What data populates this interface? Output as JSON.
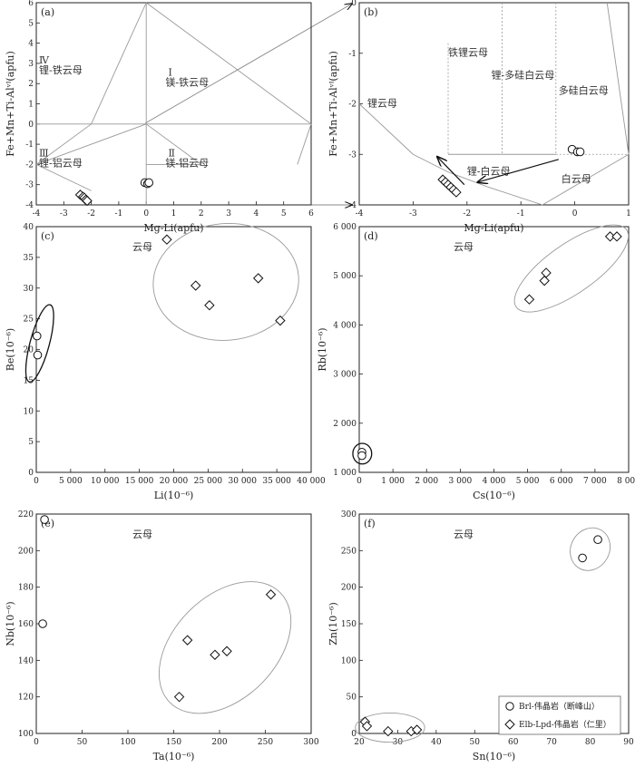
{
  "legend": {
    "items": [
      {
        "marker": "circle",
        "label": "Brl-伟晶岩（断峰山）"
      },
      {
        "marker": "diamond",
        "label": "Elb-Lpd-伟晶岩（仁里）"
      }
    ]
  },
  "chart_data": [
    {
      "id": "a",
      "panel_label": "(a)",
      "type": "scatter",
      "xlabel": "Mg-Li(apfu)",
      "ylabel": "Fe+Mn+Ti-Alᵛᴵ(apfu)",
      "xlim": [
        -4,
        6
      ],
      "ylim": [
        -4,
        6
      ],
      "xticks": [
        -4,
        -3,
        -2,
        -1,
        0,
        1,
        2,
        3,
        4,
        5,
        6
      ],
      "xtick_labels": [
        "-4",
        "-3",
        "-2",
        "-1",
        "0",
        "1",
        "2",
        "3",
        "4",
        "5",
        "6"
      ],
      "yticks": [
        -4,
        -3,
        -2,
        -1,
        0,
        1,
        2,
        3,
        4,
        5,
        6
      ],
      "ytick_labels": [
        "-4",
        "-3",
        "-2",
        "-1",
        "0",
        "1",
        "2",
        "3",
        "4",
        "5",
        "6"
      ],
      "regions": [
        {
          "label": "Ⅳ",
          "x": -3.9,
          "y": 3.0
        },
        {
          "label": "锂-铁云母",
          "x": -3.9,
          "y": 2.5
        },
        {
          "label": "Ⅰ",
          "x": 0.8,
          "y": 2.4
        },
        {
          "label": "镁-铁云母",
          "x": 0.7,
          "y": 1.9
        },
        {
          "label": "Ⅲ",
          "x": -3.9,
          "y": -1.6
        },
        {
          "label": "锂-铝云母",
          "x": -3.9,
          "y": -2.1
        },
        {
          "label": "Ⅱ",
          "x": 0.8,
          "y": -1.6
        },
        {
          "label": "镁-铝云母",
          "x": 0.7,
          "y": -2.1
        }
      ],
      "boundaries": [
        [
          [
            0,
            6
          ],
          [
            0,
            -4
          ]
        ],
        [
          [
            -4,
            0
          ],
          [
            6,
            0
          ]
        ],
        [
          [
            0,
            6
          ],
          [
            -2,
            0
          ]
        ],
        [
          [
            -2,
            0
          ],
          [
            -4,
            -2
          ]
        ],
        [
          [
            0,
            6
          ],
          [
            6,
            0
          ]
        ],
        [
          [
            6,
            0
          ],
          [
            5.5,
            -2
          ]
        ],
        [
          [
            0,
            0
          ],
          [
            -4,
            -2
          ]
        ],
        [
          [
            -4,
            -2
          ],
          [
            -2,
            -3.3
          ]
        ],
        [
          [
            0,
            -2
          ],
          [
            2,
            -2
          ]
        ],
        [
          [
            0,
            0
          ],
          [
            2,
            -2
          ]
        ]
      ],
      "series": [
        {
          "marker": "circle",
          "x": [
            -0.05,
            0.05,
            0.1
          ],
          "y": [
            -2.9,
            -2.95,
            -2.9
          ]
        },
        {
          "marker": "diamond",
          "x": [
            -2.4,
            -2.3,
            -2.25,
            -2.2,
            -2.15
          ],
          "y": [
            -3.5,
            -3.6,
            -3.65,
            -3.75,
            -3.8
          ]
        }
      ]
    },
    {
      "id": "b",
      "panel_label": "(b)",
      "type": "scatter",
      "xlabel": "Mg-Li(apfu)",
      "ylabel": "Fe+Mn+Ti-Alᵛᴵ(apfu)",
      "xlim": [
        -4,
        1
      ],
      "ylim": [
        -4,
        0
      ],
      "xticks": [
        -4,
        -3,
        -2,
        -1,
        0,
        1
      ],
      "xtick_labels": [
        "-4",
        "-3",
        "-2",
        "-1",
        "0",
        "1"
      ],
      "yticks": [
        -4,
        -3,
        -2,
        -1,
        0
      ],
      "ytick_labels": [
        "-4",
        "-3",
        "-2",
        "-1",
        "0"
      ],
      "regions": [
        {
          "label": "铁锂云母",
          "x": -2.35,
          "y": -1.05
        },
        {
          "label": "锂-多硅白云母",
          "x": -1.55,
          "y": -1.5
        },
        {
          "label": "多硅白云母",
          "x": -0.3,
          "y": -1.8
        },
        {
          "label": "锂云母",
          "x": -3.85,
          "y": -2.05
        },
        {
          "label": "锂-白云母",
          "x": -2.0,
          "y": -3.4
        },
        {
          "label": "白云母",
          "x": -0.25,
          "y": -3.55
        }
      ],
      "boundaries": [
        [
          [
            -4,
            -2.0
          ],
          [
            -3,
            -3.0
          ]
        ],
        [
          [
            -3,
            -3.0
          ],
          [
            -2.35,
            -3.35
          ]
        ],
        [
          [
            -2.35,
            -3.35
          ],
          [
            -1.6,
            -3.65
          ]
        ],
        [
          [
            -1.6,
            -3.65
          ],
          [
            -0.6,
            -4.0
          ]
        ],
        [
          [
            -0.6,
            -4.0
          ],
          [
            1,
            -3.0
          ]
        ],
        [
          [
            1,
            -3.0
          ],
          [
            0.6,
            0
          ]
        ],
        [
          [
            -2.35,
            -3.0
          ],
          [
            -0.35,
            -3.0
          ]
        ]
      ],
      "dashed_boundaries": [
        [
          [
            -2.35,
            -0.8
          ],
          [
            -2.35,
            -3.0
          ]
        ],
        [
          [
            -1.35,
            0
          ],
          [
            -1.35,
            -3.0
          ]
        ],
        [
          [
            -0.35,
            0
          ],
          [
            -0.35,
            -3.0
          ]
        ],
        [
          [
            -0.35,
            -3.0
          ],
          [
            1,
            -3.0
          ]
        ]
      ],
      "arrows": [
        [
          [
            -2.05,
            -3.6
          ],
          [
            -2.55,
            -3.05
          ]
        ],
        [
          [
            -0.3,
            -3.1
          ],
          [
            -1.8,
            -3.55
          ]
        ]
      ],
      "series": [
        {
          "marker": "circle",
          "x": [
            -0.05,
            0.05,
            0.1
          ],
          "y": [
            -2.9,
            -2.95,
            -2.95
          ]
        },
        {
          "marker": "diamond",
          "x": [
            -2.45,
            -2.4,
            -2.35,
            -2.3,
            -2.25,
            -2.2
          ],
          "y": [
            -3.5,
            -3.55,
            -3.6,
            -3.65,
            -3.7,
            -3.75
          ]
        }
      ]
    },
    {
      "id": "c",
      "panel_label": "(c)",
      "annotation": "云母",
      "type": "scatter",
      "xlabel": "Li(10⁻⁶)",
      "ylabel": "Be(10⁻⁶)",
      "xlim": [
        0,
        40000
      ],
      "ylim": [
        0,
        40
      ],
      "xticks": [
        0,
        5000,
        10000,
        15000,
        20000,
        25000,
        30000,
        35000,
        40000
      ],
      "xtick_labels": [
        "0",
        "5 000",
        "10 000",
        "15 000",
        "20 000",
        "25 000",
        "30 000",
        "35 000",
        "40 000"
      ],
      "yticks": [
        0,
        5,
        10,
        15,
        20,
        25,
        30,
        35,
        40
      ],
      "ytick_labels": [
        "0",
        "5",
        "10",
        "15",
        "20",
        "25",
        "30",
        "35",
        "40"
      ],
      "series": [
        {
          "marker": "circle",
          "x": [
            100,
            200
          ],
          "y": [
            22.2,
            19.1
          ]
        },
        {
          "marker": "diamond",
          "x": [
            19000,
            23200,
            25200,
            32300,
            35500
          ],
          "y": [
            37.9,
            30.4,
            27.2,
            31.6,
            24.7
          ]
        }
      ],
      "ellipses": [
        {
          "cx": 500,
          "cy": 21,
          "rx": 1400,
          "ry": 6.5,
          "rot": 15,
          "dark": true
        },
        {
          "cx": 27600,
          "cy": 31,
          "rx": 10600,
          "ry": 9.5,
          "rot": -5,
          "dark": false
        }
      ]
    },
    {
      "id": "d",
      "panel_label": "(d)",
      "annotation": "云母",
      "type": "scatter",
      "xlabel": "Cs(10⁻⁶)",
      "ylabel": "Rb(10⁻⁶)",
      "xlim": [
        0,
        8000
      ],
      "ylim": [
        1000,
        6000
      ],
      "xticks": [
        0,
        1000,
        2000,
        3000,
        4000,
        5000,
        6000,
        7000,
        8000
      ],
      "xtick_labels": [
        "0",
        "1 000",
        "2 000",
        "3 000",
        "4 000",
        "5 000",
        "6 000",
        "7 000",
        "8 000"
      ],
      "yticks": [
        1000,
        2000,
        3000,
        4000,
        5000,
        6000
      ],
      "ytick_labels": [
        "1 000",
        "2 000",
        "3 000",
        "4 000",
        "5 000",
        "6 000"
      ],
      "series": [
        {
          "marker": "circle",
          "x": [
            80,
            80
          ],
          "y": [
            1410,
            1340
          ]
        },
        {
          "marker": "diamond",
          "x": [
            5050,
            5500,
            5550,
            7450,
            7650
          ],
          "y": [
            4520,
            4900,
            5060,
            5800,
            5800
          ]
        }
      ],
      "ellipses": [
        {
          "cx": 90,
          "cy": 1380,
          "rx": 280,
          "ry": 210,
          "rot": 0,
          "dark": true
        },
        {
          "cx": 6300,
          "cy": 5150,
          "rx": 2000,
          "ry": 500,
          "rot": -35,
          "dark": false
        }
      ]
    },
    {
      "id": "e",
      "panel_label": "(e)",
      "annotation": "云母",
      "type": "scatter",
      "xlabel": "Ta(10⁻⁶)",
      "ylabel": "Nb(10⁻⁶)",
      "xlim": [
        0,
        300
      ],
      "ylim": [
        100,
        220
      ],
      "xticks": [
        0,
        50,
        100,
        150,
        200,
        250,
        300
      ],
      "xtick_labels": [
        "0",
        "50",
        "100",
        "150",
        "200",
        "250",
        "300"
      ],
      "yticks": [
        100,
        120,
        140,
        160,
        180,
        200,
        220
      ],
      "ytick_labels": [
        "100",
        "120",
        "140",
        "160",
        "180",
        "200",
        "220"
      ],
      "series": [
        {
          "marker": "circle",
          "x": [
            7,
            9
          ],
          "y": [
            160,
            217
          ]
        },
        {
          "marker": "diamond",
          "x": [
            156,
            165,
            195,
            208,
            256
          ],
          "y": [
            120,
            151,
            143,
            145,
            176
          ]
        }
      ],
      "ellipses": [
        {
          "cx": 206,
          "cy": 147,
          "rx": 85,
          "ry": 28,
          "rot": -45,
          "dark": false
        }
      ]
    },
    {
      "id": "f",
      "panel_label": "(f)",
      "annotation": "云母",
      "type": "scatter",
      "xlabel": "Sn(10⁻⁶)",
      "ylabel": "Zn(10⁻⁶)",
      "xlim": [
        20,
        90
      ],
      "ylim": [
        0,
        300
      ],
      "xticks": [
        20,
        30,
        40,
        50,
        60,
        70,
        80,
        90
      ],
      "xtick_labels": [
        "20",
        "30",
        "40",
        "50",
        "60",
        "70",
        "80",
        "90"
      ],
      "yticks": [
        0,
        50,
        100,
        150,
        200,
        250,
        300
      ],
      "ytick_labels": [
        "0",
        "50",
        "100",
        "150",
        "200",
        "250",
        "300"
      ],
      "series": [
        {
          "marker": "circle",
          "x": [
            78,
            82
          ],
          "y": [
            240,
            265
          ]
        },
        {
          "marker": "diamond",
          "x": [
            21.5,
            22,
            27.5,
            33.5,
            35
          ],
          "y": [
            16,
            10,
            3,
            3,
            5
          ]
        }
      ],
      "ellipses": [
        {
          "cx": 80,
          "cy": 252,
          "rx": 5,
          "ry": 30,
          "rot": 30,
          "dark": false
        },
        {
          "cx": 28,
          "cy": 8,
          "rx": 9,
          "ry": 20,
          "rot": 0,
          "dark": false
        }
      ]
    }
  ]
}
